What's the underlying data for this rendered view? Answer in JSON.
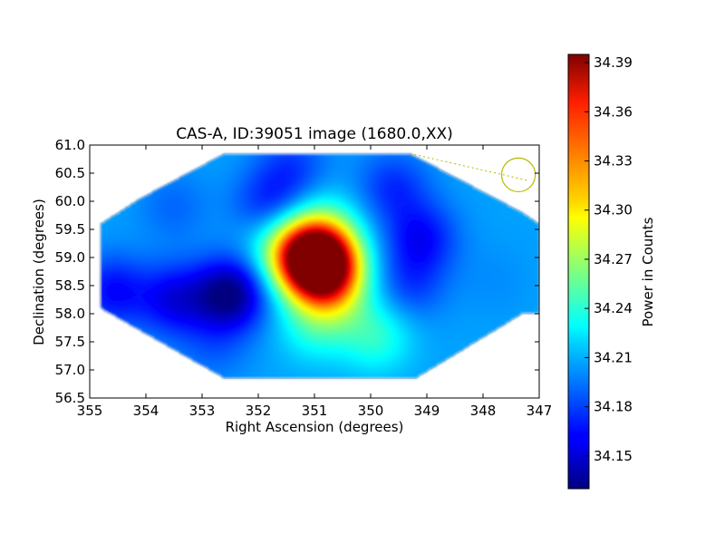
{
  "chart_data": {
    "type": "heatmap",
    "title": "CAS-A, ID:39051 image (1680.0,XX)",
    "xlabel": "Right Ascension (degrees)",
    "ylabel": "Declination (degrees)",
    "xlim": [
      355,
      347
    ],
    "ylim": [
      56.5,
      61.0
    ],
    "x_ticks": [
      "355",
      "354",
      "353",
      "352",
      "351",
      "350",
      "349",
      "348",
      "347"
    ],
    "y_ticks": [
      "56.5",
      "57.0",
      "57.5",
      "58.0",
      "58.5",
      "59.0",
      "59.5",
      "60.0",
      "60.5",
      "61.0"
    ],
    "colorbar": {
      "label": "Power in Counts",
      "min": 34.13,
      "max": 34.395,
      "ticks": [
        "34.15",
        "34.18",
        "34.21",
        "34.24",
        "34.27",
        "34.30",
        "34.33",
        "34.36",
        "34.39"
      ],
      "colormap": "jet"
    },
    "footprint_polygon": [
      [
        354.8,
        58.1
      ],
      [
        354.1,
        57.7
      ],
      [
        352.6,
        56.85
      ],
      [
        349.2,
        56.85
      ],
      [
        347.3,
        58.0
      ],
      [
        347.0,
        58.0
      ],
      [
        347.0,
        59.6
      ],
      [
        347.3,
        59.8
      ],
      [
        349.3,
        60.85
      ],
      [
        352.6,
        60.85
      ],
      [
        354.1,
        60.05
      ],
      [
        354.8,
        59.6
      ]
    ],
    "background_level": 34.205,
    "features": [
      {
        "ra": 350.85,
        "dec": 58.85,
        "value": 34.39
      },
      {
        "ra": 351.1,
        "dec": 59.0,
        "value": 34.33
      },
      {
        "ra": 351.6,
        "dec": 59.25,
        "value": 34.24
      },
      {
        "ra": 350.8,
        "dec": 59.55,
        "value": 34.235
      },
      {
        "ra": 350.6,
        "dec": 58.3,
        "value": 34.24
      },
      {
        "ra": 349.9,
        "dec": 57.6,
        "value": 34.24
      },
      {
        "ra": 351.0,
        "dec": 57.8,
        "value": 34.235
      },
      {
        "ra": 352.5,
        "dec": 58.35,
        "value": 34.13
      },
      {
        "ra": 353.5,
        "dec": 58.25,
        "value": 34.16
      },
      {
        "ra": 354.6,
        "dec": 58.4,
        "value": 34.165
      },
      {
        "ra": 349.1,
        "dec": 59.35,
        "value": 34.165
      },
      {
        "ra": 349.6,
        "dec": 60.25,
        "value": 34.175
      },
      {
        "ra": 351.8,
        "dec": 59.9,
        "value": 34.17
      },
      {
        "ra": 349.3,
        "dec": 58.5,
        "value": 34.18
      },
      {
        "ra": 351.4,
        "dec": 60.6,
        "value": 34.18
      },
      {
        "ra": 353.5,
        "dec": 59.9,
        "value": 34.19
      },
      {
        "ra": 347.8,
        "dec": 58.6,
        "value": 34.2
      },
      {
        "ra": 352.8,
        "dec": 57.4,
        "value": 34.19
      }
    ],
    "beam_circle": {
      "ra": 347.37,
      "dec": 60.47,
      "radius_deg": 0.3
    },
    "beam_line": [
      [
        349.3,
        60.85
      ],
      [
        347.2,
        60.37
      ]
    ],
    "annotation_color": "#b8b800"
  }
}
